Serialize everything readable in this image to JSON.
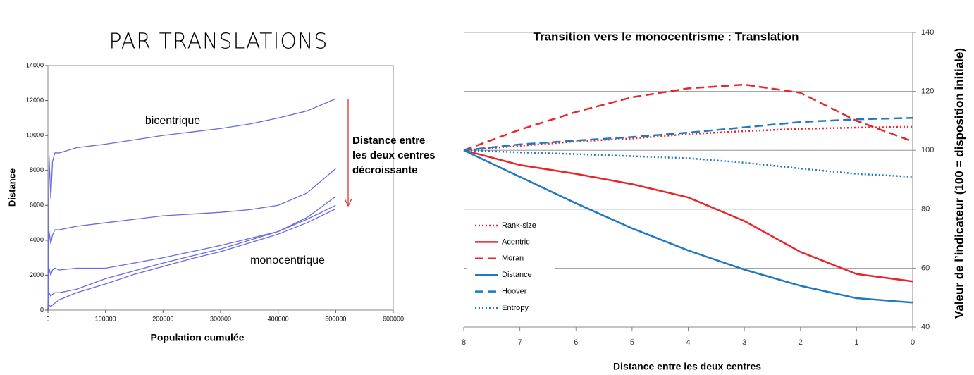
{
  "chart_data": [
    {
      "type": "line",
      "title": "PAR TRANSLATIONS",
      "x_label": "Population cumulée",
      "y_label": "Distance",
      "x": [
        0,
        2000,
        5000,
        8000,
        12000,
        20000,
        50000,
        100000,
        150000,
        200000,
        250000,
        300000,
        350000,
        400000,
        450000,
        500000
      ],
      "series": [
        {
          "color": "#6a6ae0",
          "values": [
            0,
            8800,
            6400,
            8500,
            9000,
            9000,
            9300,
            9500,
            9750,
            10000,
            10200,
            10400,
            10650,
            11000,
            11400,
            12100
          ]
        },
        {
          "color": "#6a6ae0",
          "values": [
            0,
            4500,
            3800,
            4300,
            4600,
            4600,
            4800,
            5000,
            5200,
            5400,
            5500,
            5600,
            5750,
            6000,
            6700,
            8100
          ]
        },
        {
          "color": "#6a6ae0",
          "values": [
            0,
            2400,
            2000,
            2300,
            2400,
            2300,
            2400,
            2400,
            2700,
            3000,
            3350,
            3700,
            4100,
            4500,
            5300,
            6500
          ]
        },
        {
          "color": "#6a6ae0",
          "values": [
            0,
            1000,
            800,
            900,
            1000,
            1000,
            1200,
            1800,
            2250,
            2700,
            3100,
            3500,
            4000,
            4500,
            5200,
            6000
          ]
        },
        {
          "color": "#6a6ae0",
          "values": [
            0,
            300,
            200,
            300,
            400,
            600,
            1000,
            1500,
            2050,
            2500,
            2950,
            3350,
            3850,
            4350,
            5000,
            5800
          ]
        }
      ],
      "annotations": [
        {
          "text": "bicentrique",
          "color": "#000000"
        },
        {
          "text": "monocentrique",
          "color": "#000000"
        },
        {
          "lines": [
            "Distance entre",
            "les deux centres",
            "décroissante"
          ],
          "color": "#e02020"
        }
      ],
      "xlim": [
        0,
        600000
      ],
      "xticks": [
        0,
        100000,
        200000,
        300000,
        400000,
        500000,
        600000
      ],
      "ylim": [
        0,
        14000
      ],
      "yticks": [
        0,
        2000,
        4000,
        6000,
        8000,
        10000,
        12000,
        14000
      ],
      "grid": false
    },
    {
      "type": "line",
      "title": "Transition vers le monocentrisme : Translation",
      "x_label": "Distance entre les deux centres",
      "y_label": "Valeur de l’indicateur (100 = disposition initiale)",
      "x": [
        8,
        7,
        6,
        5,
        4,
        3,
        2,
        1,
        0
      ],
      "series": [
        {
          "name": "Rank-size",
          "color": "#e8262a",
          "dash": "dotted",
          "values": [
            100,
            101.5,
            103,
            104,
            105.5,
            106.5,
            107.3,
            107.7,
            108
          ]
        },
        {
          "name": "Acentric",
          "color": "#e8262a",
          "dash": "solid",
          "values": [
            100,
            95,
            92,
            88.5,
            84,
            76,
            65.5,
            58,
            55.5
          ]
        },
        {
          "name": "Moran",
          "color": "#e8262a",
          "dash": "dashed",
          "values": [
            100,
            107,
            113,
            118,
            121,
            122.3,
            119.5,
            110,
            103
          ]
        },
        {
          "name": "Distance",
          "color": "#1f78c0",
          "dash": "solid",
          "values": [
            100,
            91,
            82,
            73.5,
            66,
            59.5,
            54,
            49.8,
            48.3
          ]
        },
        {
          "name": "Hoover",
          "color": "#1f78c0",
          "dash": "dashed",
          "values": [
            100,
            102,
            103.3,
            104.5,
            106,
            107.8,
            109.6,
            110.5,
            111
          ]
        },
        {
          "name": "Entropy",
          "color": "#1f78c0",
          "dash": "dotted",
          "values": [
            100,
            99.3,
            98.7,
            98,
            97.3,
            95.8,
            93.8,
            92,
            91
          ]
        }
      ],
      "xlim": [
        8,
        0
      ],
      "xticks": [
        8,
        7,
        6,
        5,
        4,
        3,
        2,
        1,
        0
      ],
      "ylim": [
        40,
        140
      ],
      "yticks": [
        40,
        60,
        80,
        100,
        120,
        140
      ],
      "grid": true,
      "legend": "bottom-left"
    }
  ]
}
